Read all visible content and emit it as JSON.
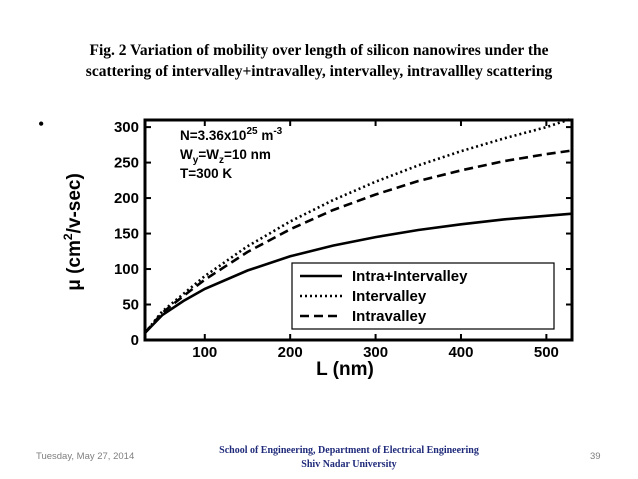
{
  "caption": {
    "line1": "Fig. 2  Variation of mobility over length of silicon nanowires under the",
    "line2": "scattering of intervalley+intravalley, intervalley, intravallley scattering"
  },
  "bullet": "•",
  "footer": {
    "date": "Tuesday, May 27, 2014",
    "center_line1": "School of Engineering,  Department of Electrical Engineering",
    "center_line2": "Shiv  Nadar University",
    "page": "39"
  },
  "chart_data": {
    "type": "line",
    "xlabel": "L (nm)",
    "ylabel_prefix": "μ (cm",
    "ylabel_sup": "2",
    "ylabel_suffix": "/v-sec)",
    "xlim": [
      30,
      530
    ],
    "ylim": [
      0,
      310
    ],
    "xticks": [
      100,
      200,
      300,
      400,
      500
    ],
    "yticks": [
      0,
      50,
      100,
      150,
      200,
      250,
      300
    ],
    "xtick_labels": [
      "100",
      "200",
      "300",
      "400",
      "500"
    ],
    "ytick_labels": [
      "0",
      "50",
      "100",
      "150",
      "200",
      "250",
      "300"
    ],
    "annotations": {
      "n_line": "N=3.36x10",
      "n_exp": "25",
      "n_unit": " m",
      "n_unit_exp": "-3",
      "w_line": "W",
      "w_sub1": "y",
      "w_mid": "=W",
      "w_sub2": "z",
      "w_end": "=10 nm",
      "t_line": "T=300 K"
    },
    "legend_position": "lower-right",
    "x": [
      30,
      50,
      75,
      100,
      150,
      200,
      250,
      300,
      350,
      400,
      450,
      500,
      530
    ],
    "series": [
      {
        "name": "Intra+Intervalley",
        "style": "solid",
        "values": [
          10,
          35,
          55,
          72,
          98,
          118,
          133,
          145,
          155,
          163,
          170,
          175,
          178
        ]
      },
      {
        "name": "Intervalley",
        "style": "dotted",
        "values": [
          10,
          40,
          65,
          90,
          132,
          167,
          197,
          223,
          246,
          266,
          284,
          300,
          312
        ]
      },
      {
        "name": "Intravalley",
        "style": "dashed",
        "values": [
          10,
          38,
          62,
          85,
          124,
          156,
          183,
          205,
          224,
          239,
          252,
          262,
          267
        ]
      }
    ]
  }
}
